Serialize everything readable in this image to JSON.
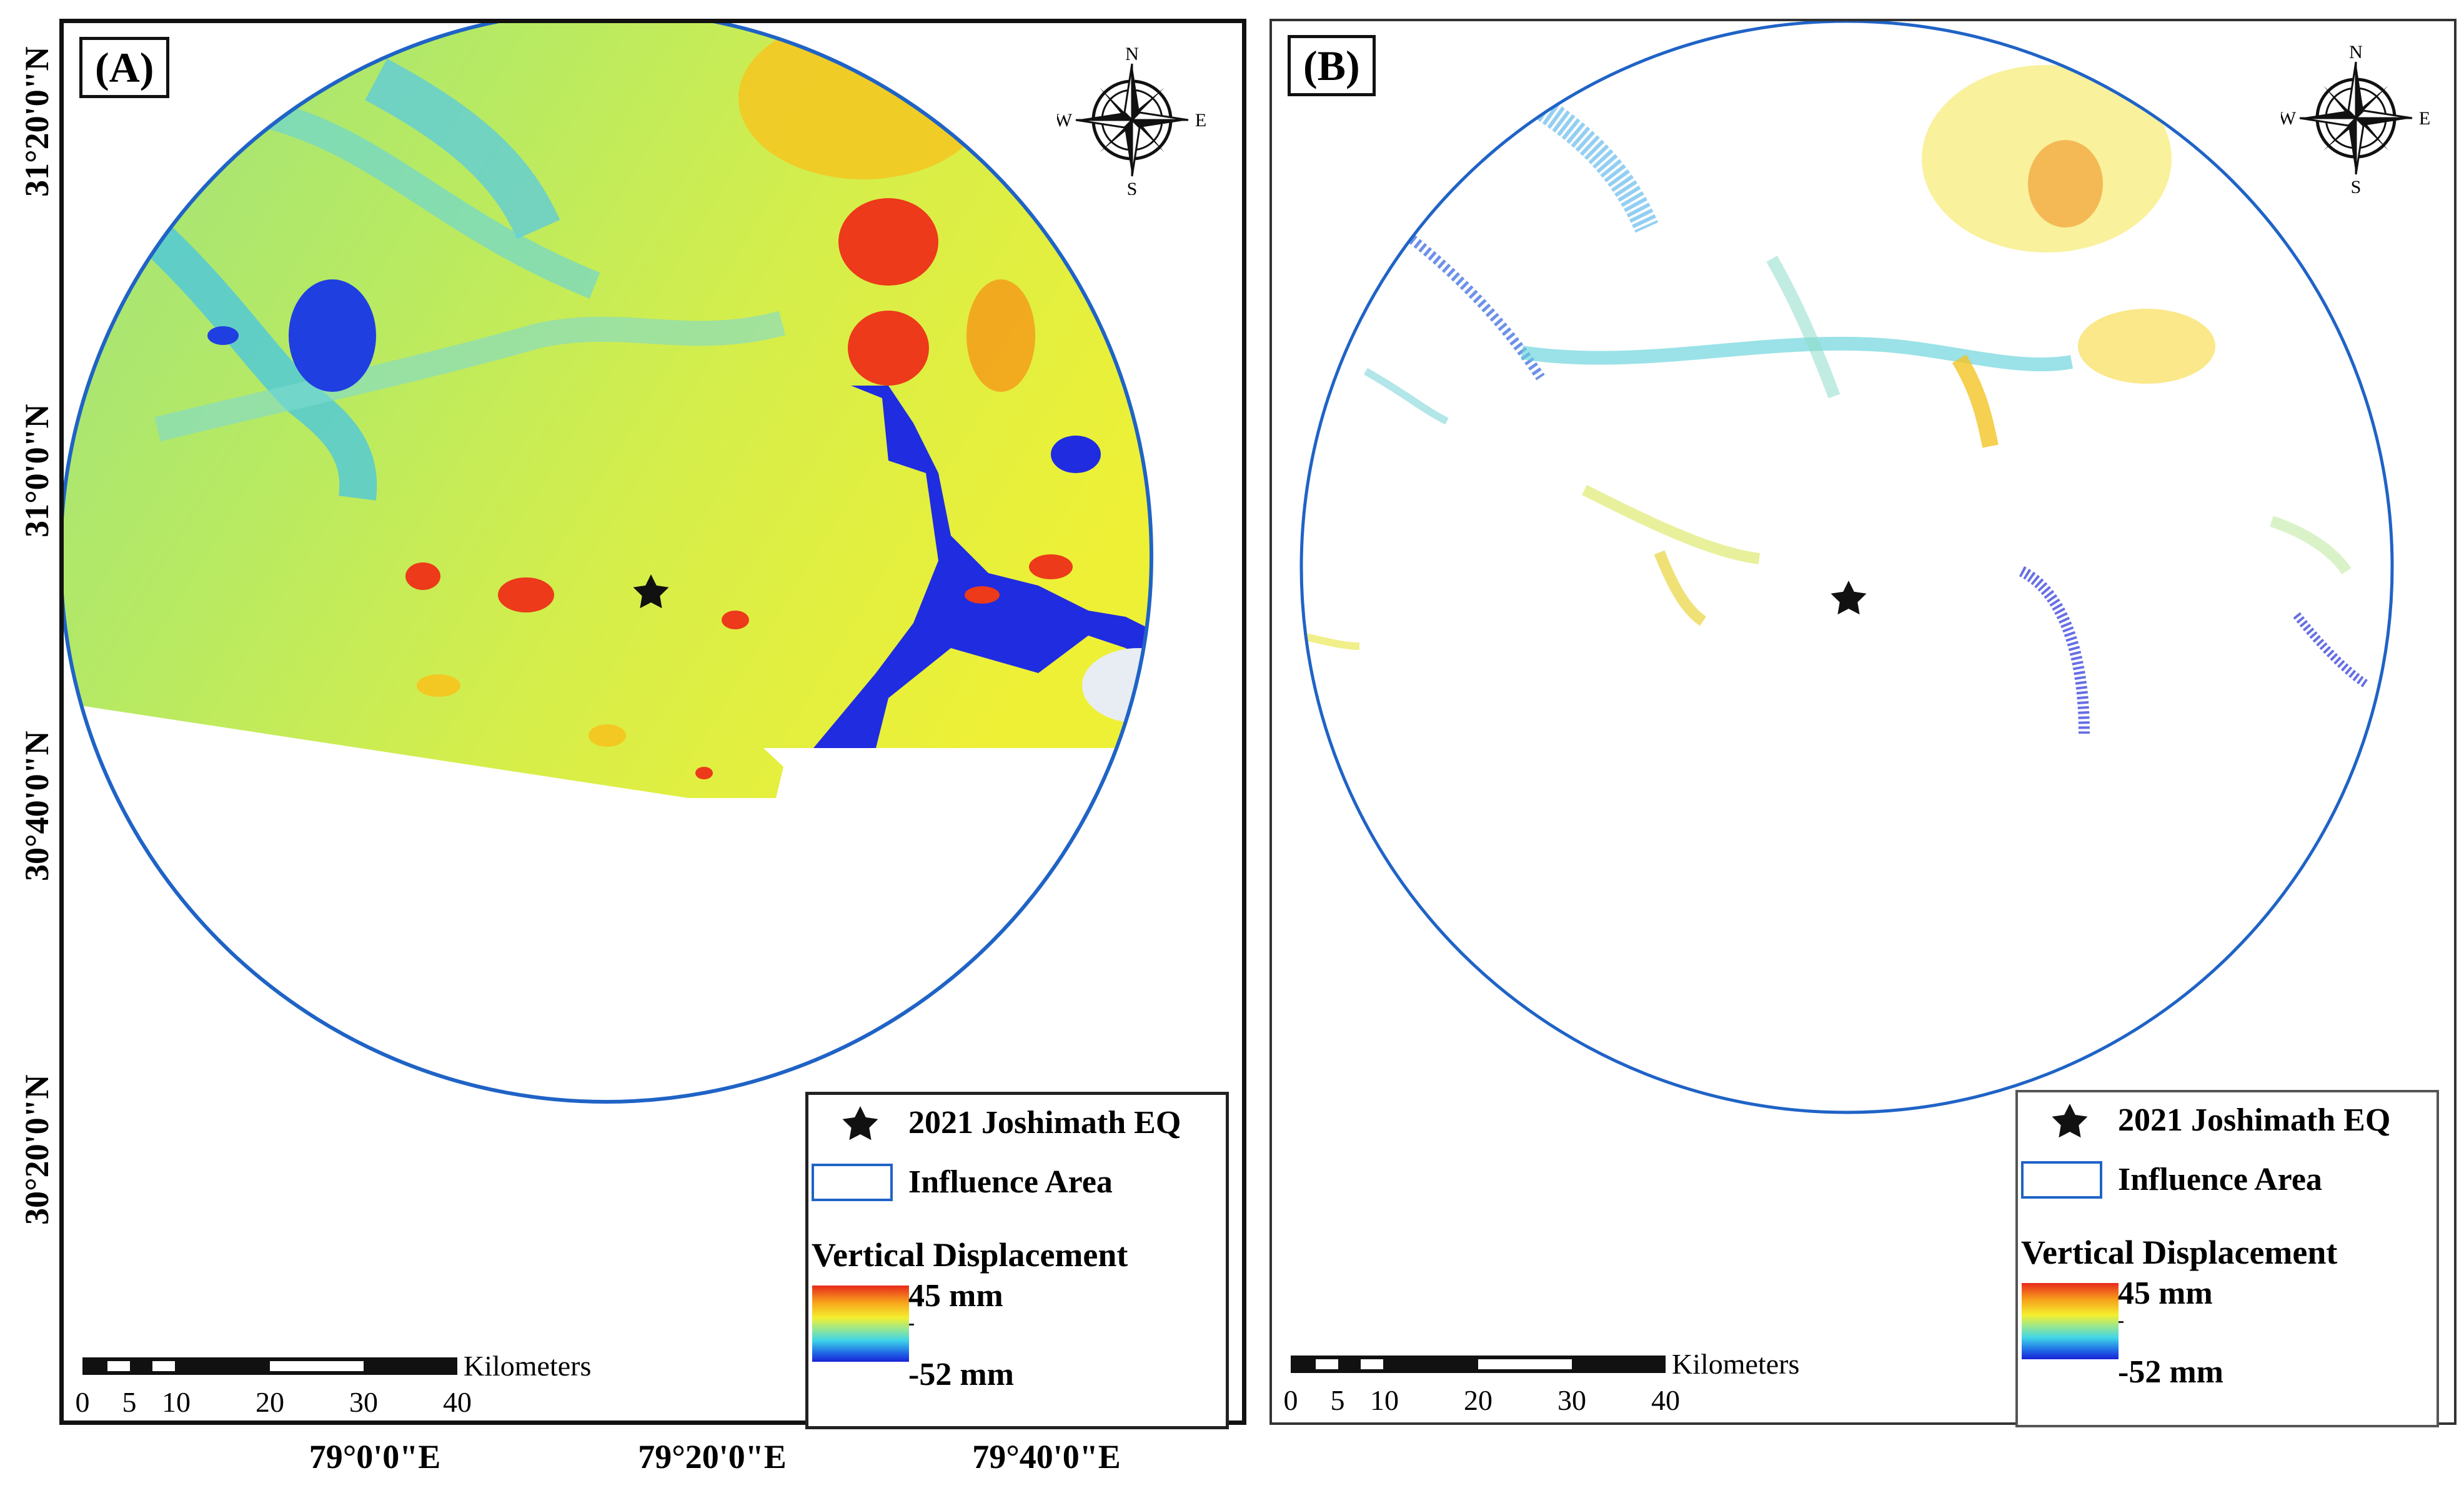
{
  "panels": [
    {
      "label": "(A)"
    },
    {
      "label": "(B)"
    }
  ],
  "north_arrow": {
    "n": "N",
    "s": "S",
    "e": "E",
    "w": "W",
    "icon": "compass-rose-icon"
  },
  "legend": {
    "epicenter_label": "2021 Joshimath EQ",
    "influence_label": "Influence Area",
    "title": "Vertical Displacement",
    "max_label": "45 mm",
    "min_label": "-52 mm",
    "ramp_colors": [
      "#e8281c",
      "#f7a21b",
      "#f4ef2e",
      "#9ee88a",
      "#3fd5e8",
      "#1f6be6",
      "#1a22d8"
    ],
    "circle_color": "#1f63c6"
  },
  "scalebar": {
    "unit": "Kilometers",
    "ticks": [
      "0",
      "5",
      "10",
      "20",
      "30",
      "40"
    ]
  },
  "latitudes": [
    "31°20'0\"N",
    "31°0'0\"N",
    "30°40'0\"N",
    "30°20'0\"N"
  ],
  "longitudes": [
    "79°0'0\"E",
    "79°20'0\"E",
    "79°40'0\"E"
  ]
}
